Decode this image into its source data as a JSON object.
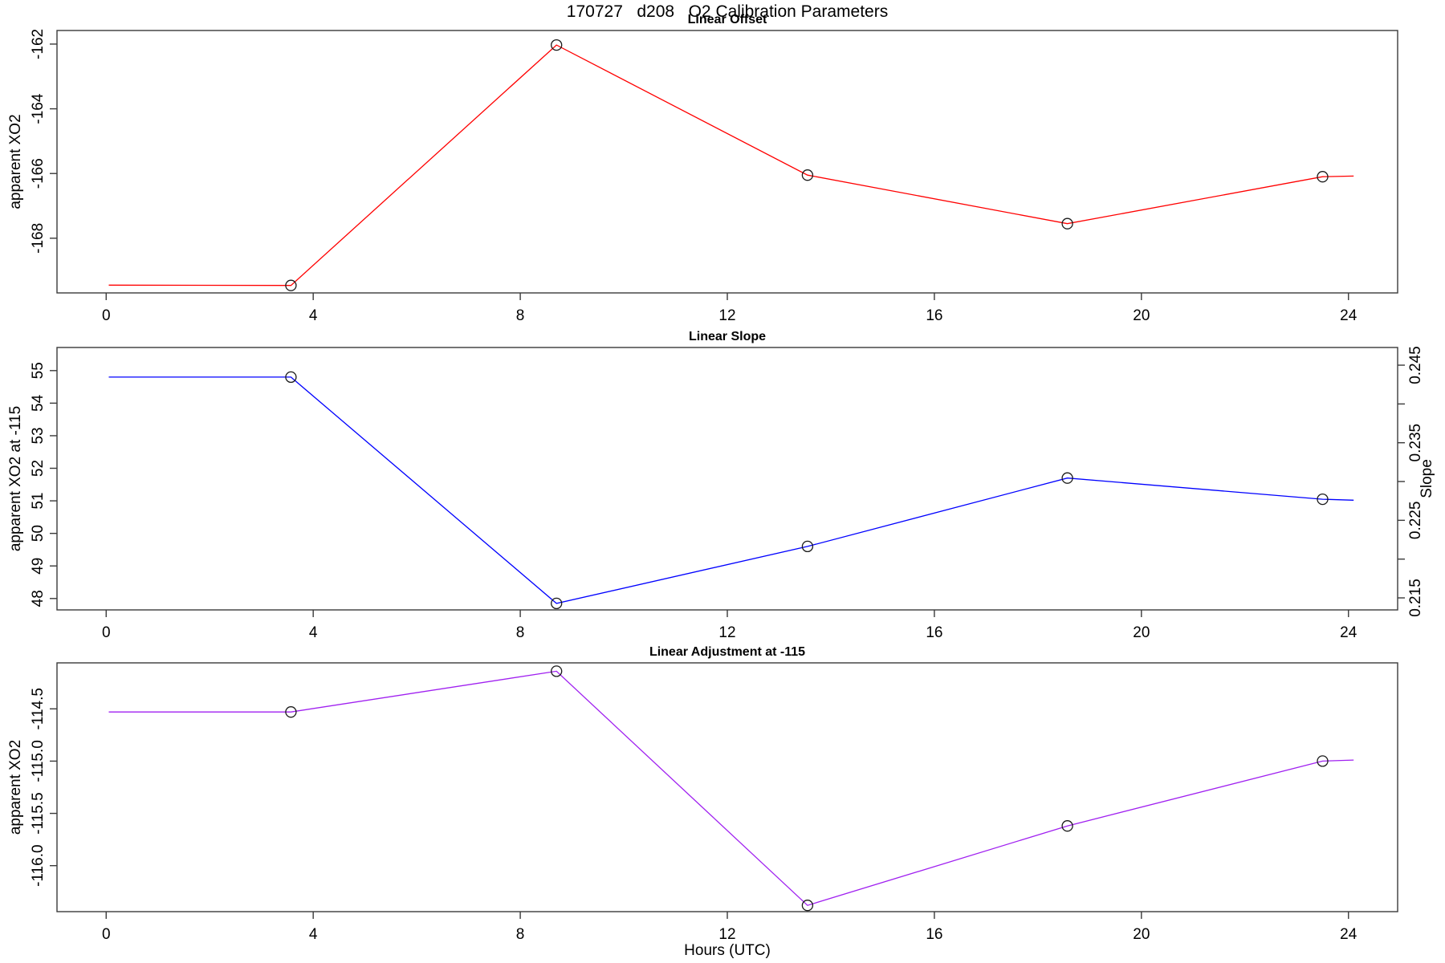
{
  "figure": {
    "title": "170727   d208   O2 Calibration Parameters",
    "xlabel": "Hours (UTC)",
    "background": "#ffffff"
  },
  "chart_data": [
    {
      "type": "line",
      "title": "Linear Offset",
      "ylabel": "apparent XO2",
      "color": "#ff0000",
      "marker": "open-circle",
      "marker_color": "#1a1a1a",
      "x": [
        0.05,
        3.57,
        8.7,
        13.55,
        18.57,
        23.5,
        24.1
      ],
      "values": [
        -169.45,
        -169.46,
        -162.03,
        -166.05,
        -167.55,
        -166.1,
        -166.08
      ],
      "marker_point_indices": [
        1,
        2,
        3,
        4,
        5
      ],
      "xlim": [
        -0.95,
        24.95
      ],
      "ylim": [
        -169.69,
        -161.58
      ],
      "xticks": [
        0,
        4,
        8,
        12,
        16,
        20,
        24
      ],
      "xtick_labels": [
        "0",
        "4",
        "8",
        "12",
        "16",
        "20",
        "24"
      ],
      "yticks": [
        -162,
        -164,
        -166,
        -168
      ],
      "ytick_labels": [
        "-162",
        "-164",
        "-166",
        "-168"
      ],
      "grid": false,
      "legend": "none"
    },
    {
      "type": "line",
      "title": "Linear Slope",
      "ylabel": "apparent XO2 at -115",
      "ylabel_right": "Slope",
      "color": "#0000ff",
      "marker": "open-circle",
      "marker_color": "#1a1a1a",
      "x": [
        0.05,
        3.57,
        8.7,
        13.55,
        18.57,
        23.5,
        24.1
      ],
      "values": [
        54.8,
        54.8,
        47.85,
        49.6,
        51.7,
        51.05,
        51.02
      ],
      "slope_values_right_axis": [
        0.2425,
        0.2425,
        0.2152,
        0.2225,
        0.2312,
        0.2285,
        0.2284
      ],
      "marker_point_indices": [
        1,
        2,
        3,
        4,
        5
      ],
      "xlim": [
        -0.95,
        24.95
      ],
      "ylim": [
        47.65,
        55.71
      ],
      "xticks": [
        0,
        4,
        8,
        12,
        16,
        20,
        24
      ],
      "xtick_labels": [
        "0",
        "4",
        "8",
        "12",
        "16",
        "20",
        "24"
      ],
      "yticks": [
        55,
        54,
        53,
        52,
        51,
        50,
        49,
        48
      ],
      "ytick_labels": [
        "55",
        "54",
        "53",
        "52",
        "51",
        "50",
        "49",
        "48"
      ],
      "right_ylim": [
        0.21345,
        0.24728
      ],
      "right_yticks": [
        0.215,
        0.22,
        0.225,
        0.23,
        0.235,
        0.24,
        0.245
      ],
      "right_ytick_labels": [
        "0.215",
        "",
        "0.225",
        "",
        "0.235",
        "",
        "0.245"
      ],
      "grid": false,
      "legend": "none"
    },
    {
      "type": "line",
      "title": "Linear Adjustment at -115",
      "ylabel": "apparent XO2",
      "color": "#a020f0",
      "marker": "open-circle",
      "marker_color": "#1a1a1a",
      "x": [
        0.05,
        3.57,
        8.7,
        13.55,
        18.57,
        23.5,
        24.1
      ],
      "values": [
        -114.53,
        -114.53,
        -114.14,
        -116.38,
        -115.62,
        -115.0,
        -114.99
      ],
      "marker_point_indices": [
        1,
        2,
        3,
        4,
        5
      ],
      "xlim": [
        -0.95,
        24.95
      ],
      "ylim": [
        -116.44,
        -114.06
      ],
      "xticks": [
        0,
        4,
        8,
        12,
        16,
        20,
        24
      ],
      "xtick_labels": [
        "0",
        "4",
        "8",
        "12",
        "16",
        "20",
        "24"
      ],
      "yticks": [
        -114.5,
        -115.0,
        -115.5,
        -116.0
      ],
      "ytick_labels": [
        "-114.5",
        "-115.0",
        "-115.5",
        "-116.0"
      ],
      "grid": false,
      "legend": "none"
    }
  ]
}
